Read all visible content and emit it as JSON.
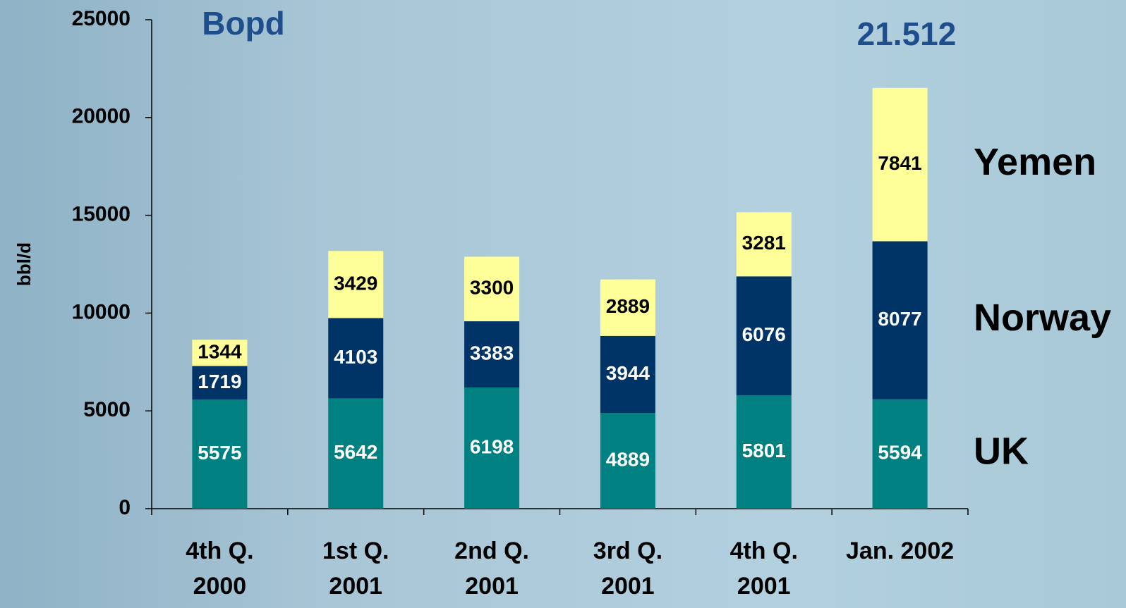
{
  "chart_data": {
    "type": "stacked_bar",
    "title": "Bopd",
    "annotation": "21.512",
    "y_label": "bbl/d",
    "categories": [
      "4th Q.\n2000",
      "1st Q.\n2001",
      "2nd Q.\n2001",
      "3rd Q.\n2001",
      "4th Q.\n2001",
      "Jan. 2002"
    ],
    "series": [
      {
        "name": "UK",
        "color": "#008080",
        "values": [
          5575,
          5642,
          6198,
          4889,
          5801,
          5594
        ]
      },
      {
        "name": "Norway",
        "color": "#003366",
        "values": [
          1719,
          4103,
          3383,
          3944,
          6076,
          8077
        ]
      },
      {
        "name": "Yemen",
        "color": "#ffff99",
        "values": [
          1344,
          3429,
          3300,
          2889,
          3281,
          7841
        ]
      }
    ],
    "ylim": [
      0,
      25000
    ],
    "yticks": [
      0,
      5000,
      10000,
      15000,
      20000,
      25000
    ]
  }
}
